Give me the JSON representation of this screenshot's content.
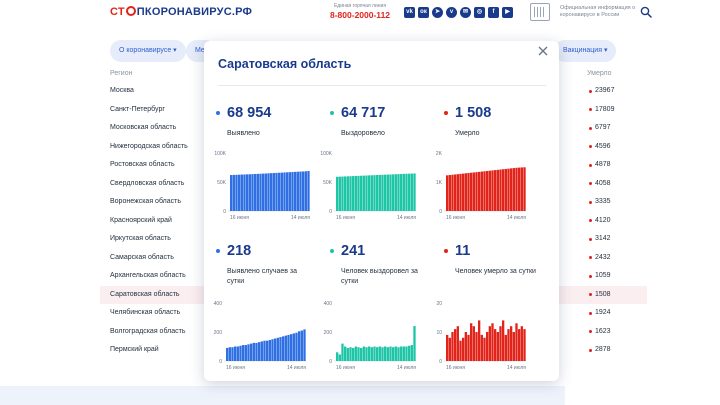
{
  "header": {
    "logo_part1": "СТ",
    "logo_part2": "ПКОРОНАВИРУС.РФ",
    "hotline_label": "Единая горячая линия",
    "hotline_phone": "8-800-2000-112",
    "socials": [
      {
        "icon": "vk-icon",
        "glyph": "vk"
      },
      {
        "icon": "odnoklassniki-icon",
        "glyph": "ок"
      },
      {
        "icon": "telegram-icon",
        "glyph": "➤"
      },
      {
        "icon": "viber-icon",
        "glyph": "v"
      },
      {
        "icon": "chat-icon",
        "glyph": "✉"
      },
      {
        "icon": "instagram-icon",
        "glyph": "◎"
      },
      {
        "icon": "facebook-icon",
        "glyph": "f"
      },
      {
        "icon": "youtube-icon",
        "glyph": "▶"
      }
    ],
    "official_text": "Официальная информация о коронавирусе в России"
  },
  "nav": {
    "about_label": "О коронавирусе ▾",
    "measures_label": "Ме",
    "vaccination_label": "Вакцинация ▾"
  },
  "table": {
    "col_region": "Регион",
    "col_deaths": "Умерло",
    "rows": [
      {
        "region": "Москва",
        "deaths": "23967"
      },
      {
        "region": "Санкт-Петербург",
        "deaths": "17809"
      },
      {
        "region": "Московская область",
        "deaths": "6797"
      },
      {
        "region": "Нижегородская область",
        "deaths": "4596"
      },
      {
        "region": "Ростовская область",
        "deaths": "4878"
      },
      {
        "region": "Свердловская область",
        "deaths": "4058"
      },
      {
        "region": "Воронежская область",
        "deaths": "3335"
      },
      {
        "region": "Красноярский край",
        "deaths": "4120"
      },
      {
        "region": "Иркутская область",
        "deaths": "3142"
      },
      {
        "region": "Самарская область",
        "deaths": "2432"
      },
      {
        "region": "Архангельская область",
        "deaths": "1059"
      },
      {
        "region": "Саратовская область",
        "deaths": "1508",
        "highlight": true
      },
      {
        "region": "Челябинская область",
        "deaths": "1924"
      },
      {
        "region": "Волгоградская область",
        "deaths": "1623"
      },
      {
        "region": "Пермский край",
        "deaths": "2878"
      }
    ]
  },
  "modal": {
    "title": "Саратовская область",
    "stats": [
      {
        "value": "68 954",
        "label": "Выявлено",
        "color": "#2f6fe4"
      },
      {
        "value": "64 717",
        "label": "Выздоровело",
        "color": "#1ec5a6"
      },
      {
        "value": "1 508",
        "label": "Умерло",
        "color": "#e2231a"
      },
      {
        "value": "218",
        "label": "Выявлено случаев за сутки",
        "color": "#2f6fe4"
      },
      {
        "value": "241",
        "label": "Человек выздоровел за сутки",
        "color": "#1ec5a6"
      },
      {
        "value": "11",
        "label": "Человек умерло за сутки",
        "color": "#e2231a"
      }
    ]
  },
  "chart_data": [
    {
      "type": "bar",
      "color": "#2f6fe4",
      "xticks": [
        "16 июня",
        "14 июля"
      ],
      "yticks": [
        "0",
        "50K",
        "100K"
      ],
      "ylim": [
        0,
        100000
      ],
      "values": [
        62000,
        62200,
        62400,
        62600,
        62800,
        63000,
        63200,
        63400,
        63600,
        63800,
        64000,
        64200,
        64500,
        64700,
        65000,
        65200,
        65500,
        65700,
        66000,
        66200,
        66500,
        66700,
        67000,
        67200,
        67500,
        67700,
        68000,
        68200,
        68500,
        68954
      ]
    },
    {
      "type": "bar",
      "color": "#1ec5a6",
      "xticks": [
        "16 июня",
        "14 июля"
      ],
      "yticks": [
        "0",
        "50K",
        "100K"
      ],
      "ylim": [
        0,
        100000
      ],
      "values": [
        59000,
        59200,
        59400,
        59600,
        59800,
        60000,
        60200,
        60400,
        60600,
        60800,
        61000,
        61200,
        61400,
        61600,
        61800,
        62000,
        62200,
        62400,
        62600,
        62800,
        63000,
        63200,
        63400,
        63600,
        63800,
        64000,
        64200,
        64400,
        64500,
        64717
      ]
    },
    {
      "type": "bar",
      "color": "#e2231a",
      "xticks": [
        "16 июня",
        "14 июля"
      ],
      "yticks": [
        "0",
        "1K",
        "2K"
      ],
      "ylim": [
        0,
        2000
      ],
      "values": [
        1230,
        1240,
        1250,
        1260,
        1270,
        1280,
        1290,
        1300,
        1310,
        1320,
        1330,
        1340,
        1350,
        1360,
        1370,
        1380,
        1390,
        1400,
        1410,
        1420,
        1430,
        1440,
        1450,
        1460,
        1470,
        1480,
        1490,
        1497,
        1503,
        1508
      ]
    },
    {
      "type": "bar",
      "color": "#2f6fe4",
      "xticks": [
        "16 июня",
        "14 июля"
      ],
      "yticks": [
        "0",
        "200",
        "400"
      ],
      "ylim": [
        0,
        400
      ],
      "values": [
        90,
        95,
        95,
        100,
        100,
        105,
        110,
        110,
        115,
        120,
        125,
        125,
        130,
        135,
        140,
        140,
        145,
        150,
        155,
        160,
        165,
        170,
        175,
        180,
        185,
        190,
        195,
        205,
        210,
        218
      ]
    },
    {
      "type": "bar",
      "color": "#1ec5a6",
      "xticks": [
        "16 июня",
        "14 июля"
      ],
      "yticks": [
        "0",
        "200",
        "400"
      ],
      "ylim": [
        0,
        400
      ],
      "values": [
        60,
        45,
        120,
        100,
        90,
        95,
        90,
        100,
        95,
        90,
        100,
        95,
        100,
        95,
        100,
        95,
        100,
        95,
        100,
        95,
        100,
        95,
        100,
        95,
        100,
        100,
        100,
        105,
        110,
        241
      ]
    },
    {
      "type": "bar",
      "color": "#e2231a",
      "xticks": [
        "16 июня",
        "14 июля"
      ],
      "yticks": [
        "0",
        "10",
        "20"
      ],
      "ylim": [
        0,
        20
      ],
      "values": [
        9,
        8,
        10,
        11,
        12,
        7,
        8,
        10,
        9,
        13,
        12,
        10,
        14,
        9,
        8,
        10,
        12,
        13,
        11,
        10,
        12,
        14,
        9,
        11,
        12,
        10,
        13,
        11,
        12,
        11
      ]
    }
  ]
}
